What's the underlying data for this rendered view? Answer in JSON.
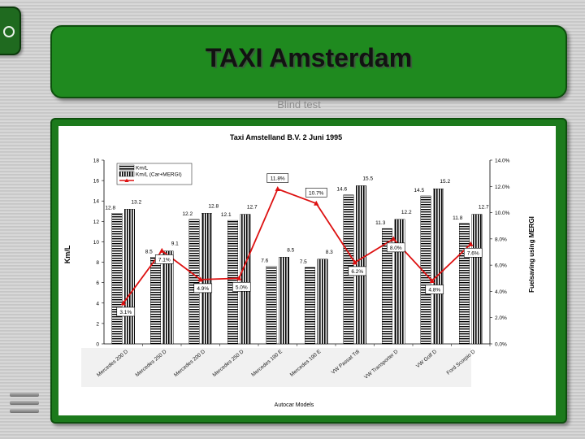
{
  "slide": {
    "title": "TAXI Amsterdam",
    "subtitle": "Blind test"
  },
  "chart_data": {
    "type": "bar",
    "title": "Taxi Amstelland B.V. 2 Juni 1995",
    "xlabel": "Autocar Models",
    "ylabel": "Km/L",
    "y2label": "Fuelsaving using MERGI",
    "ylim": [
      0,
      18
    ],
    "y2lim": [
      0,
      14
    ],
    "yticks": [
      "0",
      "2",
      "4",
      "6",
      "8",
      "10",
      "12",
      "14",
      "16",
      "18"
    ],
    "y2ticks": [
      "0.0%",
      "2.0%",
      "4.0%",
      "6.0%",
      "8.0%",
      "10.0%",
      "12.0%",
      "14.0%"
    ],
    "categories": [
      "Mercedes 200 D",
      "Mercedes 250 D",
      "Mercedes 200 D",
      "Mercedes 250 D",
      "Mercedes 190 E",
      "Mercedes 190 E",
      "VW Passat Tdi",
      "VW Transporter D",
      "VW Golf D",
      "Ford Scorpio D"
    ],
    "series": [
      {
        "name": "Km/L",
        "values": [
          12.8,
          8.5,
          12.2,
          12.1,
          7.6,
          7.5,
          14.6,
          11.3,
          14.5,
          11.8
        ],
        "labels": [
          "12.8",
          "8.5",
          "12.2",
          "12.1",
          "7.6",
          "7.5",
          "14.6",
          "11.3",
          "14.5",
          "11.8"
        ]
      },
      {
        "name": "Km/L (Car+MERGI)",
        "values": [
          13.2,
          9.1,
          12.8,
          12.7,
          8.5,
          8.3,
          15.5,
          12.2,
          15.2,
          12.7
        ],
        "labels": [
          "13.2",
          "9.1",
          "12.8",
          "12.7",
          "8.5",
          "8.3",
          "15.5",
          "12.2",
          "15.2",
          "12.7"
        ]
      },
      {
        "name": "",
        "axis": "secondary",
        "values": [
          3.1,
          7.1,
          4.9,
          5.0,
          11.8,
          10.7,
          6.2,
          8.0,
          4.8,
          7.6
        ],
        "labels": [
          "3.1%",
          "7.1%",
          "4.9%",
          "5.0%",
          "11.8%",
          "10.7%",
          "6.2%",
          "8.0%",
          "4.8%",
          "7.6%"
        ]
      }
    ],
    "legend_position": "top-left",
    "grid": false,
    "colors": {
      "line": "#dd1111",
      "bar": "#000000"
    }
  }
}
